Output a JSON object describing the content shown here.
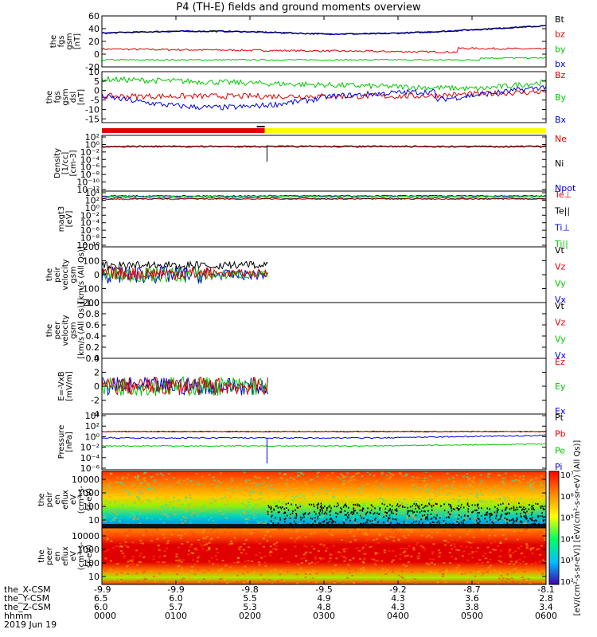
{
  "title": "P4 (TH-E) fields and ground moments overview",
  "colors": {
    "black": "#000000",
    "red": "#e00000",
    "green": "#00c800",
    "blue": "#0000e0",
    "yellow": "#ffff00",
    "orange": "#ff9900"
  },
  "panels": [
    {
      "id": "fgs-gsm",
      "ylabel_lines": [
        "the",
        "fgs",
        "gsm",
        "[nT]"
      ],
      "ticks": [
        "60",
        "40",
        "20",
        "0",
        "-20"
      ],
      "tick_vals": [
        60,
        40,
        20,
        0,
        -20
      ],
      "ylim": [
        -20,
        60
      ],
      "legend": [
        {
          "text": "Bt",
          "color": "black"
        },
        {
          "text": "bz",
          "color": "red"
        },
        {
          "text": "by",
          "color": "green"
        },
        {
          "text": "bx",
          "color": "blue"
        }
      ]
    },
    {
      "id": "fgs-gsm-dsl",
      "ylabel_lines": [
        "the",
        "fgs",
        "gsm",
        "dsl",
        "[nT]"
      ],
      "ticks": [
        "10",
        "5",
        "0",
        "-5",
        "-10",
        "-15"
      ],
      "tick_vals": [
        10,
        5,
        0,
        -5,
        -10,
        -15
      ],
      "ylim": [
        -17,
        10
      ],
      "legend": [
        {
          "text": "Bz",
          "color": "red"
        },
        {
          "text": "By",
          "color": "green"
        },
        {
          "text": "Bx",
          "color": "blue"
        }
      ]
    },
    {
      "id": "density",
      "ylabel_lines": [
        "Density",
        "[1/cc]",
        "[cm-3]"
      ],
      "ticks": [
        "10²",
        "10⁰",
        "10⁻²",
        "10⁻⁴",
        "10⁻⁶",
        "10⁻⁸",
        "10⁻¹⁰",
        "10⁻¹²"
      ],
      "ylim": [
        -12,
        2
      ],
      "legend": [
        {
          "text": "Ne",
          "color": "red"
        },
        {
          "text": "Ni",
          "color": "black"
        },
        {
          "text": "Npot",
          "color": "blue"
        }
      ]
    },
    {
      "id": "temperature",
      "ylabel_lines": [
        "magt3",
        "[eV]"
      ],
      "ticks": [
        "10⁴",
        "10²",
        "10⁰",
        "10⁻²",
        "10⁻⁴",
        "10⁻⁶",
        "10⁻⁸",
        "10⁻¹⁰"
      ],
      "ylim": [
        -10,
        4
      ],
      "legend": [
        {
          "text": "Te⊥",
          "color": "red"
        },
        {
          "text": "Te||",
          "color": "black"
        },
        {
          "text": "Ti⊥",
          "color": "blue"
        },
        {
          "text": "Ti||",
          "color": "green"
        }
      ]
    },
    {
      "id": "peir-velocity",
      "ylabel_lines": [
        "the",
        "peir",
        "velocity",
        "gsm",
        "[km/s (All Qs)]"
      ],
      "ticks": [
        "200",
        "100",
        "0",
        "-100",
        "-200"
      ],
      "tick_vals": [
        200,
        100,
        0,
        -100,
        -200
      ],
      "ylim": [
        -200,
        200
      ],
      "legend": [
        {
          "text": "Vt",
          "color": "black"
        },
        {
          "text": "Vz",
          "color": "red"
        },
        {
          "text": "Vy",
          "color": "green"
        },
        {
          "text": "Vx",
          "color": "blue"
        }
      ]
    },
    {
      "id": "peer-velocity",
      "ylabel_lines": [
        "the",
        "peer",
        "velocity",
        "gsm",
        "[km/s (All Qs)]"
      ],
      "ticks": [
        "1.0",
        "0.8",
        "0.6",
        "0.4",
        "0.2",
        "0.0"
      ],
      "tick_vals": [
        1,
        0.8,
        0.6,
        0.4,
        0.2,
        0
      ],
      "ylim": [
        0,
        1
      ],
      "legend": [
        {
          "text": "Vt",
          "color": "black"
        },
        {
          "text": "Vz",
          "color": "red"
        },
        {
          "text": "Vy",
          "color": "green"
        },
        {
          "text": "Vx",
          "color": "blue"
        }
      ]
    },
    {
      "id": "efield",
      "ylabel_lines": [
        "E=-VxB",
        "[mV/m]"
      ],
      "ticks": [
        "4",
        "2",
        "0",
        "-2",
        "-4"
      ],
      "tick_vals": [
        4,
        2,
        0,
        -2,
        -4
      ],
      "ylim": [
        -4,
        4
      ],
      "legend": [
        {
          "text": "Ez",
          "color": "red"
        },
        {
          "text": "Ey",
          "color": "green"
        },
        {
          "text": "Ex",
          "color": "blue"
        }
      ]
    },
    {
      "id": "pressure",
      "ylabel_lines": [
        "Pressure",
        "[nPa]"
      ],
      "ticks": [
        "10⁴",
        "10²",
        "10⁰",
        "10⁻²",
        "10⁻⁴",
        "10⁻⁶"
      ],
      "ylim": [
        -6,
        4
      ],
      "legend": [
        {
          "text": "Pt",
          "color": "black"
        },
        {
          "text": "Pb",
          "color": "red"
        },
        {
          "text": "Pe",
          "color": "green"
        },
        {
          "text": "Pi",
          "color": "blue"
        }
      ]
    },
    {
      "id": "peir-en-eflux",
      "ylabel_lines": [
        "the",
        "peir",
        "en",
        "eflux",
        "eV",
        "(cm²-s-",
        "sr-eV)"
      ],
      "ticks": [
        "10000",
        "1000",
        "100",
        "10"
      ]
    },
    {
      "id": "peer-en-eflux",
      "ylabel_lines": [
        "the",
        "peer",
        "en",
        "eflux",
        "eV",
        "(cm²-s-",
        "sr-eV)"
      ],
      "ticks": [
        "10000",
        "1000",
        "100",
        "10"
      ]
    }
  ],
  "colorbar": {
    "ticks": [
      "10⁷",
      "10⁶",
      "10⁵",
      "10⁴",
      "10³",
      "10²"
    ],
    "label": "[eV/(cm²-s-sr-eV)] [eV/(cm²-s-sr-eV) (All Qs)]"
  },
  "xaxis": {
    "row_labels": [
      "the_X-CSM",
      "the_Y-CSM",
      "the_Z-CSM",
      "hhmm",
      "2019 Jun 19"
    ],
    "columns": [
      {
        "x": "-9.9",
        "y": "6.5",
        "z": "6.0",
        "t": "0000"
      },
      {
        "x": "-9.9",
        "y": "6.0",
        "z": "5.7",
        "t": "0100"
      },
      {
        "x": "-9.8",
        "y": "5.5",
        "z": "5.3",
        "t": "0200"
      },
      {
        "x": "-9.5",
        "y": "4.9",
        "z": "4.8",
        "t": "0300"
      },
      {
        "x": "-9.2",
        "y": "4.3",
        "z": "4.3",
        "t": "0400"
      },
      {
        "x": "-8.7",
        "y": "3.6",
        "z": "3.8",
        "t": "0500"
      },
      {
        "x": "-8.1",
        "y": "2.8",
        "z": "3.4",
        "t": "0600"
      }
    ]
  },
  "chart_data": {
    "type": "line",
    "x_unit": "hhmm",
    "x_range": [
      "0000",
      "0600"
    ],
    "series": [
      {
        "name": "Bt",
        "panel": "fgs-gsm",
        "x": [
          0,
          1,
          2,
          3,
          4,
          5,
          6
        ],
        "y": [
          35,
          36,
          33,
          35,
          33,
          42,
          44
        ]
      },
      {
        "name": "bz",
        "panel": "fgs-gsm",
        "x": [
          0,
          1,
          2,
          3,
          4,
          5,
          6
        ],
        "y": [
          4,
          0,
          -1,
          2,
          2,
          6,
          8
        ]
      },
      {
        "name": "by",
        "panel": "fgs-gsm",
        "x": [
          0,
          1,
          2,
          3,
          4,
          5,
          6
        ],
        "y": [
          -8,
          -10,
          -9,
          -10,
          -11,
          -11,
          -8
        ]
      },
      {
        "name": "bx",
        "panel": "fgs-gsm",
        "x": [
          0,
          1,
          2,
          3,
          4,
          5,
          6
        ],
        "y": [
          35,
          36,
          33,
          35,
          33,
          42,
          44
        ]
      },
      {
        "name": "Bz",
        "panel": "fgs-gsm-dsl",
        "x": [
          0,
          1,
          2,
          3,
          4,
          5,
          6
        ],
        "y": [
          -3,
          -2,
          -1,
          -2,
          -2,
          0,
          1
        ]
      },
      {
        "name": "By",
        "panel": "fgs-gsm-dsl",
        "x": [
          0,
          1,
          2,
          3,
          4,
          5,
          6
        ],
        "y": [
          7,
          4,
          2,
          0,
          0,
          1,
          4
        ]
      },
      {
        "name": "Bx",
        "panel": "fgs-gsm-dsl",
        "x": [
          0,
          1,
          2,
          3,
          4,
          5,
          6
        ],
        "y": [
          -3,
          -8,
          -4,
          -5,
          -8,
          -5,
          0
        ]
      },
      {
        "name": "Ne",
        "panel": "density",
        "x": [
          0,
          1,
          2,
          3,
          4,
          5,
          6
        ],
        "y": [
          1,
          1,
          1,
          1,
          1,
          1,
          1
        ]
      },
      {
        "name": "Te⊥",
        "panel": "temperature",
        "x": [
          0,
          1,
          2,
          3,
          4,
          5,
          6
        ],
        "y": [
          3,
          3,
          3,
          3,
          3,
          3,
          3
        ]
      },
      {
        "name": "Vt",
        "panel": "peir-velocity",
        "x": [
          0,
          0.5,
          1,
          1.5,
          2,
          2.25
        ],
        "y": [
          50,
          30,
          80,
          40,
          20,
          10
        ]
      },
      {
        "name": "Ez",
        "panel": "efield",
        "x": [
          0,
          0.5,
          1,
          1.5,
          2,
          2.25
        ],
        "y": [
          0.5,
          0,
          0.5,
          0,
          0,
          0
        ]
      },
      {
        "name": "Pt",
        "panel": "pressure",
        "x": [
          0,
          1,
          2,
          3,
          4,
          5,
          6
        ],
        "y": [
          0,
          0,
          0,
          0,
          0,
          0,
          0
        ]
      }
    ]
  }
}
